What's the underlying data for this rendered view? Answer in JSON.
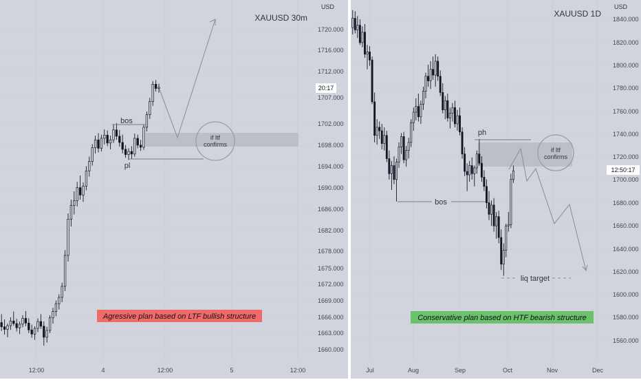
{
  "colors": {
    "background": "#d1d4dc",
    "candle": "#131722",
    "divider": "#ffffff",
    "annotation_line": "#7a7d85",
    "zone": "#b8bbc4",
    "red_label_bg": "#f06a6a",
    "green_label_bg": "#6cc26c"
  },
  "chart_data": [
    {
      "type": "candlestick",
      "title": "XAUUSD 30m",
      "y_unit": "USD",
      "ylim": [
        1657.8,
        1725.2
      ],
      "y_ticks": [
        "1720.000",
        "1716.000",
        "1712.000",
        "1707.000",
        "1702.000",
        "1698.000",
        "1694.000",
        "1690.000",
        "1686.000",
        "1682.000",
        "1678.000",
        "1675.000",
        "1672.000",
        "1669.000",
        "1666.000",
        "1663.000",
        "1660.000"
      ],
      "x_ticks": [
        "12:00",
        "4",
        "12:00",
        "5",
        "12:00"
      ],
      "countdown": "20:17",
      "last_price": 1709.6,
      "candles": [
        {
          "o": 1664.8,
          "h": 1666.4,
          "l": 1663.2,
          "c": 1664.0
        },
        {
          "o": 1664.0,
          "h": 1665.4,
          "l": 1662.5,
          "c": 1663.5
        },
        {
          "o": 1663.5,
          "h": 1664.6,
          "l": 1662.0,
          "c": 1664.2
        },
        {
          "o": 1664.2,
          "h": 1665.8,
          "l": 1663.4,
          "c": 1665.1
        },
        {
          "o": 1665.1,
          "h": 1666.9,
          "l": 1664.2,
          "c": 1664.6
        },
        {
          "o": 1664.6,
          "h": 1665.5,
          "l": 1663.1,
          "c": 1663.8
        },
        {
          "o": 1663.8,
          "h": 1665.0,
          "l": 1662.6,
          "c": 1664.5
        },
        {
          "o": 1664.5,
          "h": 1666.2,
          "l": 1663.9,
          "c": 1665.6
        },
        {
          "o": 1665.6,
          "h": 1667.0,
          "l": 1664.1,
          "c": 1664.7
        },
        {
          "o": 1664.7,
          "h": 1665.6,
          "l": 1662.8,
          "c": 1663.4
        },
        {
          "o": 1663.4,
          "h": 1664.4,
          "l": 1661.9,
          "c": 1662.6
        },
        {
          "o": 1662.6,
          "h": 1664.1,
          "l": 1661.5,
          "c": 1663.7
        },
        {
          "o": 1663.7,
          "h": 1665.6,
          "l": 1663.0,
          "c": 1665.0
        },
        {
          "o": 1665.0,
          "h": 1666.4,
          "l": 1663.6,
          "c": 1664.1
        },
        {
          "o": 1664.1,
          "h": 1665.0,
          "l": 1660.4,
          "c": 1662.0
        },
        {
          "o": 1662.0,
          "h": 1664.0,
          "l": 1661.0,
          "c": 1663.3
        },
        {
          "o": 1663.3,
          "h": 1666.2,
          "l": 1662.8,
          "c": 1665.7
        },
        {
          "o": 1665.7,
          "h": 1667.6,
          "l": 1664.6,
          "c": 1666.9
        },
        {
          "o": 1666.9,
          "h": 1669.0,
          "l": 1666.0,
          "c": 1668.4
        },
        {
          "o": 1668.4,
          "h": 1670.2,
          "l": 1667.3,
          "c": 1669.6
        },
        {
          "o": 1669.6,
          "h": 1672.4,
          "l": 1668.7,
          "c": 1671.7
        },
        {
          "o": 1671.7,
          "h": 1678.6,
          "l": 1670.8,
          "c": 1677.6
        },
        {
          "o": 1677.6,
          "h": 1685.6,
          "l": 1676.4,
          "c": 1684.5
        },
        {
          "o": 1684.5,
          "h": 1688.2,
          "l": 1683.1,
          "c": 1687.1
        },
        {
          "o": 1687.1,
          "h": 1689.8,
          "l": 1685.4,
          "c": 1688.0
        },
        {
          "o": 1688.0,
          "h": 1691.6,
          "l": 1686.9,
          "c": 1690.5
        },
        {
          "o": 1690.5,
          "h": 1692.8,
          "l": 1688.2,
          "c": 1689.1
        },
        {
          "o": 1689.1,
          "h": 1691.5,
          "l": 1687.8,
          "c": 1690.8
        },
        {
          "o": 1690.8,
          "h": 1694.6,
          "l": 1690.0,
          "c": 1693.7
        },
        {
          "o": 1693.7,
          "h": 1696.4,
          "l": 1692.6,
          "c": 1695.5
        },
        {
          "o": 1695.5,
          "h": 1698.8,
          "l": 1694.7,
          "c": 1698.1
        },
        {
          "o": 1698.1,
          "h": 1700.4,
          "l": 1697.0,
          "c": 1699.6
        },
        {
          "o": 1699.6,
          "h": 1700.9,
          "l": 1697.2,
          "c": 1698.0
        },
        {
          "o": 1698.0,
          "h": 1700.6,
          "l": 1697.4,
          "c": 1699.9
        },
        {
          "o": 1699.9,
          "h": 1701.6,
          "l": 1698.7,
          "c": 1700.5
        },
        {
          "o": 1700.5,
          "h": 1701.4,
          "l": 1698.4,
          "c": 1699.0
        },
        {
          "o": 1699.0,
          "h": 1700.4,
          "l": 1697.8,
          "c": 1699.6
        },
        {
          "o": 1699.6,
          "h": 1702.5,
          "l": 1699.0,
          "c": 1701.5
        },
        {
          "o": 1701.5,
          "h": 1702.8,
          "l": 1699.6,
          "c": 1700.3
        },
        {
          "o": 1700.3,
          "h": 1701.5,
          "l": 1698.3,
          "c": 1699.1
        },
        {
          "o": 1699.1,
          "h": 1700.6,
          "l": 1697.0,
          "c": 1697.8
        },
        {
          "o": 1697.8,
          "h": 1698.6,
          "l": 1696.2,
          "c": 1696.8
        },
        {
          "o": 1696.8,
          "h": 1698.0,
          "l": 1695.8,
          "c": 1697.4
        },
        {
          "o": 1697.4,
          "h": 1698.4,
          "l": 1696.0,
          "c": 1696.9
        },
        {
          "o": 1696.9,
          "h": 1700.8,
          "l": 1696.4,
          "c": 1699.9
        },
        {
          "o": 1699.9,
          "h": 1700.6,
          "l": 1698.0,
          "c": 1698.6
        },
        {
          "o": 1698.6,
          "h": 1699.6,
          "l": 1697.5,
          "c": 1698.2
        },
        {
          "o": 1698.2,
          "h": 1702.5,
          "l": 1697.7,
          "c": 1702.0
        },
        {
          "o": 1702.0,
          "h": 1705.0,
          "l": 1701.2,
          "c": 1704.4
        },
        {
          "o": 1704.4,
          "h": 1707.6,
          "l": 1703.6,
          "c": 1706.9
        },
        {
          "o": 1706.9,
          "h": 1710.8,
          "l": 1706.1,
          "c": 1710.2
        },
        {
          "o": 1710.2,
          "h": 1711.0,
          "l": 1708.8,
          "c": 1709.4
        },
        {
          "o": 1709.4,
          "h": 1710.3,
          "l": 1708.6,
          "c": 1709.6
        }
      ]
    },
    {
      "type": "candlestick",
      "title": "XAUUSD 1D",
      "y_unit": "USD",
      "ylim": [
        1545,
        1850
      ],
      "y_ticks": [
        "1840.000",
        "1820.000",
        "1800.000",
        "1780.000",
        "1760.000",
        "1740.000",
        "1720.000",
        "1700.000",
        "1680.000",
        "1660.000",
        "1640.000",
        "1620.000",
        "1600.000",
        "1580.000",
        "1560.000"
      ],
      "x_ticks": [
        "Jul",
        "Aug",
        "Sep",
        "Oct",
        "Nov",
        "Dec"
      ],
      "countdown": "12:50:17",
      "last_price": 1707.5,
      "candles": [
        {
          "o": 1831,
          "h": 1846,
          "l": 1825,
          "c": 1839
        },
        {
          "o": 1839,
          "h": 1845,
          "l": 1826,
          "c": 1829
        },
        {
          "o": 1829,
          "h": 1841,
          "l": 1822,
          "c": 1833
        },
        {
          "o": 1833,
          "h": 1838,
          "l": 1816,
          "c": 1818
        },
        {
          "o": 1818,
          "h": 1832,
          "l": 1814,
          "c": 1827
        },
        {
          "o": 1827,
          "h": 1834,
          "l": 1805,
          "c": 1808
        },
        {
          "o": 1808,
          "h": 1816,
          "l": 1795,
          "c": 1810
        },
        {
          "o": 1810,
          "h": 1815,
          "l": 1798,
          "c": 1803
        },
        {
          "o": 1803,
          "h": 1806,
          "l": 1765,
          "c": 1767
        },
        {
          "o": 1767,
          "h": 1775,
          "l": 1732,
          "c": 1738
        },
        {
          "o": 1738,
          "h": 1752,
          "l": 1730,
          "c": 1745
        },
        {
          "o": 1745,
          "h": 1750,
          "l": 1735,
          "c": 1742
        },
        {
          "o": 1742,
          "h": 1748,
          "l": 1726,
          "c": 1731
        },
        {
          "o": 1731,
          "h": 1745,
          "l": 1725,
          "c": 1738
        },
        {
          "o": 1738,
          "h": 1742,
          "l": 1715,
          "c": 1718
        },
        {
          "o": 1718,
          "h": 1725,
          "l": 1700,
          "c": 1705
        },
        {
          "o": 1705,
          "h": 1716,
          "l": 1691,
          "c": 1712
        },
        {
          "o": 1712,
          "h": 1720,
          "l": 1696,
          "c": 1700
        },
        {
          "o": 1700,
          "h": 1718,
          "l": 1681,
          "c": 1715
        },
        {
          "o": 1715,
          "h": 1732,
          "l": 1710,
          "c": 1728
        },
        {
          "o": 1728,
          "h": 1740,
          "l": 1722,
          "c": 1737
        },
        {
          "o": 1737,
          "h": 1741,
          "l": 1714,
          "c": 1717
        },
        {
          "o": 1717,
          "h": 1729,
          "l": 1711,
          "c": 1725
        },
        {
          "o": 1725,
          "h": 1736,
          "l": 1718,
          "c": 1732
        },
        {
          "o": 1732,
          "h": 1752,
          "l": 1728,
          "c": 1749
        },
        {
          "o": 1749,
          "h": 1762,
          "l": 1742,
          "c": 1758
        },
        {
          "o": 1758,
          "h": 1770,
          "l": 1751,
          "c": 1763
        },
        {
          "o": 1763,
          "h": 1774,
          "l": 1750,
          "c": 1754
        },
        {
          "o": 1754,
          "h": 1768,
          "l": 1748,
          "c": 1765
        },
        {
          "o": 1765,
          "h": 1780,
          "l": 1760,
          "c": 1776
        },
        {
          "o": 1776,
          "h": 1792,
          "l": 1770,
          "c": 1789
        },
        {
          "o": 1789,
          "h": 1799,
          "l": 1780,
          "c": 1785
        },
        {
          "o": 1785,
          "h": 1802,
          "l": 1778,
          "c": 1795
        },
        {
          "o": 1795,
          "h": 1806,
          "l": 1786,
          "c": 1790
        },
        {
          "o": 1790,
          "h": 1808,
          "l": 1780,
          "c": 1802
        },
        {
          "o": 1802,
          "h": 1806,
          "l": 1785,
          "c": 1789
        },
        {
          "o": 1789,
          "h": 1794,
          "l": 1772,
          "c": 1775
        },
        {
          "o": 1775,
          "h": 1783,
          "l": 1757,
          "c": 1760
        },
        {
          "o": 1760,
          "h": 1772,
          "l": 1752,
          "c": 1768
        },
        {
          "o": 1768,
          "h": 1774,
          "l": 1750,
          "c": 1753
        },
        {
          "o": 1753,
          "h": 1762,
          "l": 1744,
          "c": 1757
        },
        {
          "o": 1757,
          "h": 1766,
          "l": 1750,
          "c": 1762
        },
        {
          "o": 1762,
          "h": 1768,
          "l": 1745,
          "c": 1748
        },
        {
          "o": 1748,
          "h": 1760,
          "l": 1742,
          "c": 1755
        },
        {
          "o": 1755,
          "h": 1762,
          "l": 1738,
          "c": 1741
        },
        {
          "o": 1741,
          "h": 1745,
          "l": 1718,
          "c": 1722
        },
        {
          "o": 1722,
          "h": 1728,
          "l": 1703,
          "c": 1707
        },
        {
          "o": 1707,
          "h": 1714,
          "l": 1690,
          "c": 1704
        },
        {
          "o": 1704,
          "h": 1716,
          "l": 1698,
          "c": 1712
        },
        {
          "o": 1712,
          "h": 1719,
          "l": 1700,
          "c": 1705
        },
        {
          "o": 1705,
          "h": 1712,
          "l": 1694,
          "c": 1710
        },
        {
          "o": 1710,
          "h": 1725,
          "l": 1705,
          "c": 1722
        },
        {
          "o": 1722,
          "h": 1735,
          "l": 1712,
          "c": 1714
        },
        {
          "o": 1714,
          "h": 1720,
          "l": 1698,
          "c": 1702
        },
        {
          "o": 1702,
          "h": 1708,
          "l": 1690,
          "c": 1694
        },
        {
          "o": 1694,
          "h": 1700,
          "l": 1675,
          "c": 1680
        },
        {
          "o": 1680,
          "h": 1690,
          "l": 1665,
          "c": 1670
        },
        {
          "o": 1670,
          "h": 1682,
          "l": 1660,
          "c": 1678
        },
        {
          "o": 1678,
          "h": 1684,
          "l": 1655,
          "c": 1660
        },
        {
          "o": 1660,
          "h": 1672,
          "l": 1649,
          "c": 1668
        },
        {
          "o": 1668,
          "h": 1673,
          "l": 1645,
          "c": 1650
        },
        {
          "o": 1650,
          "h": 1657,
          "l": 1622,
          "c": 1627
        },
        {
          "o": 1627,
          "h": 1645,
          "l": 1617,
          "c": 1639
        },
        {
          "o": 1639,
          "h": 1662,
          "l": 1633,
          "c": 1660
        },
        {
          "o": 1660,
          "h": 1672,
          "l": 1655,
          "c": 1661
        },
        {
          "o": 1661,
          "h": 1705,
          "l": 1658,
          "c": 1700
        },
        {
          "o": 1700,
          "h": 1712,
          "l": 1697,
          "c": 1707.5
        }
      ]
    }
  ],
  "left": {
    "annotations": {
      "bos": "bos",
      "pl": "pl",
      "circle": [
        "if ltf",
        "confirms"
      ],
      "plan": "Agressive plan based on LTF bullish structure"
    }
  },
  "right": {
    "annotations": {
      "ph": "ph",
      "bos": "bos",
      "circle": [
        "if ltf",
        "confirms"
      ],
      "liq": "liq target",
      "plan": "Conservative plan based on HTF bearish structure"
    }
  }
}
